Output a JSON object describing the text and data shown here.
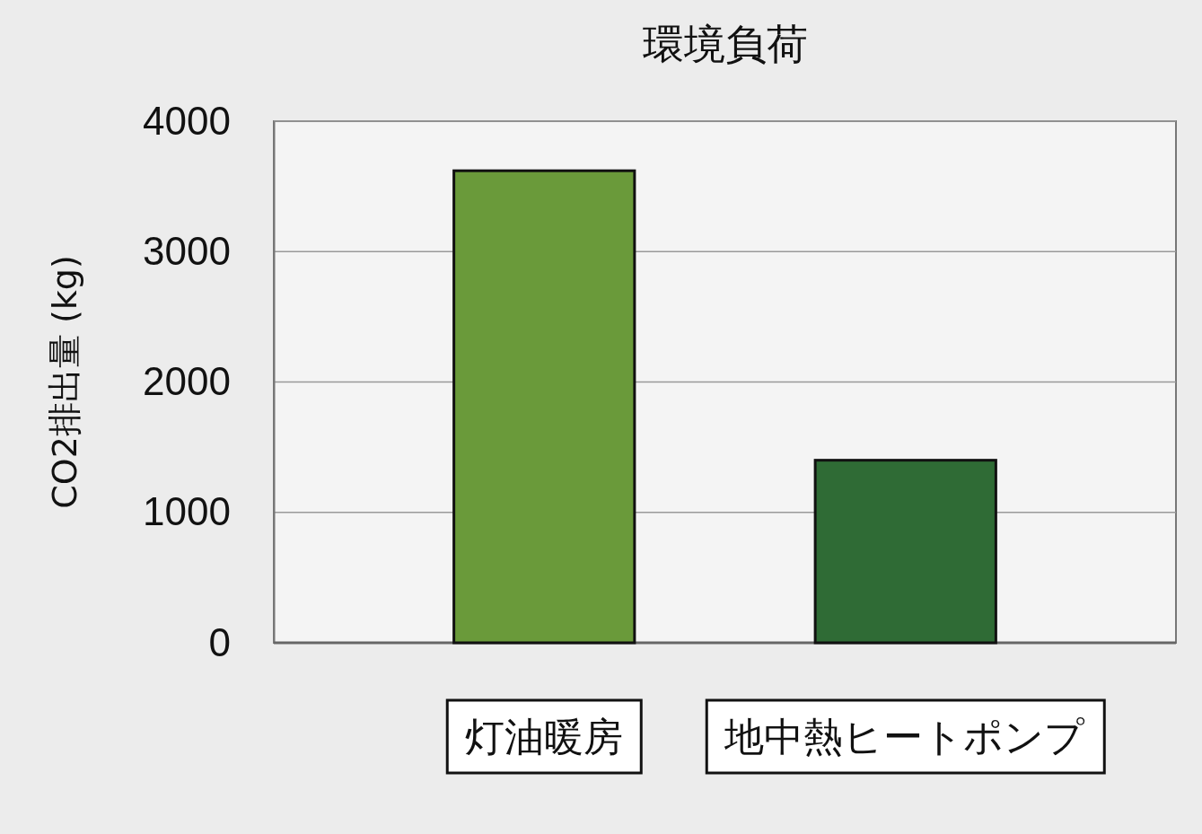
{
  "chart_data": {
    "type": "bar",
    "title": "環境負荷",
    "ylabel": "CO2排出量 (kg)",
    "categories": [
      "灯油暖房",
      "地中熱ヒートポンプ"
    ],
    "values": [
      3620,
      1400
    ],
    "colors": [
      "#6a9a3a",
      "#2f6b35"
    ],
    "ylim": [
      0,
      4000
    ],
    "yticks": [
      0,
      1000,
      2000,
      3000,
      4000
    ],
    "grid": "y"
  }
}
